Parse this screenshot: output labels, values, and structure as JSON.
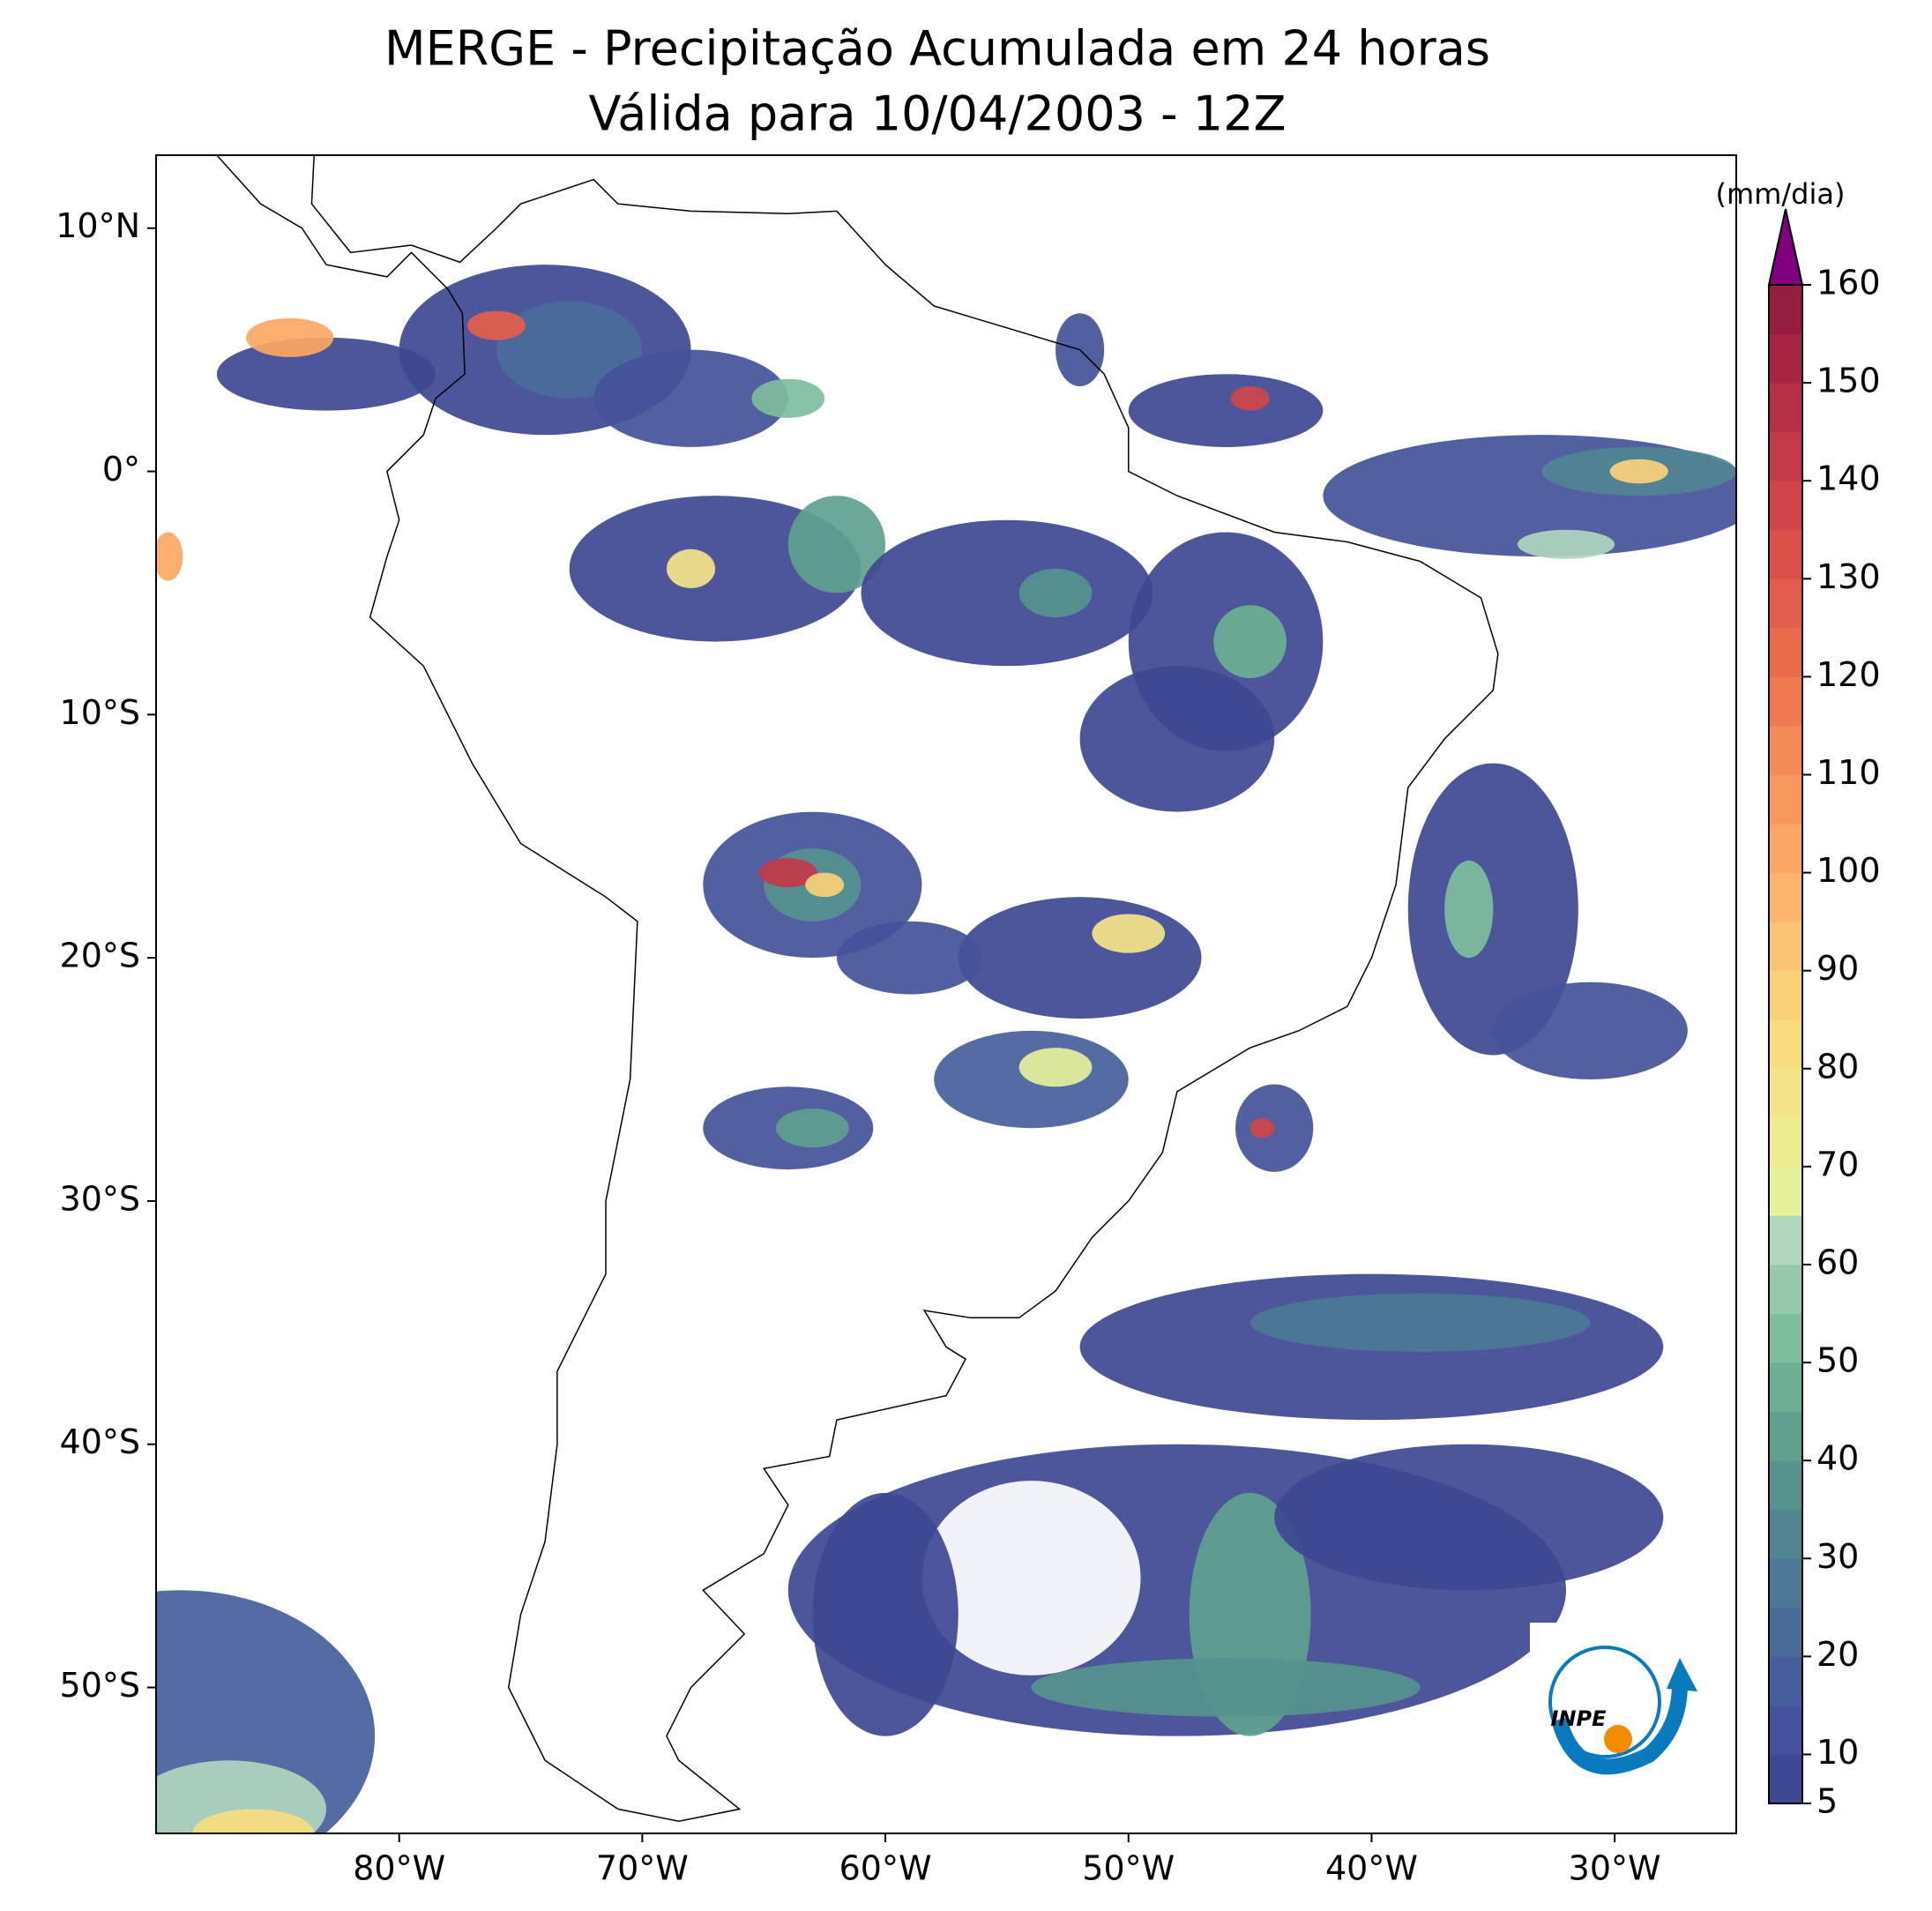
{
  "chart_data": {
    "type": "map",
    "title": "MERGE - Precipitação Acumulada em 24 horas",
    "subtitle": "Válida para 10/04/2003 - 12Z",
    "xlim": [
      -90,
      -25
    ],
    "ylim": [
      -56,
      13
    ],
    "xticks": [
      {
        "value": -80,
        "label": "80°W"
      },
      {
        "value": -70,
        "label": "70°W"
      },
      {
        "value": -60,
        "label": "60°W"
      },
      {
        "value": -50,
        "label": "50°W"
      },
      {
        "value": -40,
        "label": "40°W"
      },
      {
        "value": -30,
        "label": "30°W"
      }
    ],
    "yticks": [
      {
        "value": 10,
        "label": "10°N"
      },
      {
        "value": 0,
        "label": "0°"
      },
      {
        "value": -10,
        "label": "10°S"
      },
      {
        "value": -20,
        "label": "20°S"
      },
      {
        "value": -30,
        "label": "30°S"
      },
      {
        "value": -40,
        "label": "40°S"
      },
      {
        "value": -50,
        "label": "50°S"
      }
    ],
    "colorbar": {
      "label": "(mm/dia)",
      "lim": [
        5,
        160
      ],
      "ticks": [
        5,
        10,
        20,
        30,
        40,
        50,
        60,
        70,
        80,
        90,
        100,
        110,
        120,
        130,
        140,
        150,
        160
      ],
      "colors": [
        "#3e4893",
        "#43529a",
        "#465e9c",
        "#496b9a",
        "#4c7896",
        "#508591",
        "#55938e",
        "#5ea18e",
        "#6bb094",
        "#7dbe9c",
        "#95c9a9",
        "#b0d6bd",
        "#e6f19a",
        "#edec8e",
        "#f3e487",
        "#f7dc80",
        "#fad17a",
        "#fcc372",
        "#fcb56a",
        "#fba763",
        "#f8985c",
        "#f58a56",
        "#f07a50",
        "#ea6b4c",
        "#e35e4b",
        "#da514a",
        "#cf4549",
        "#c33a48",
        "#b52f46",
        "#a62543",
        "#961c40"
      ],
      "extend_color": "#800080"
    },
    "logo_text": "INPE"
  }
}
